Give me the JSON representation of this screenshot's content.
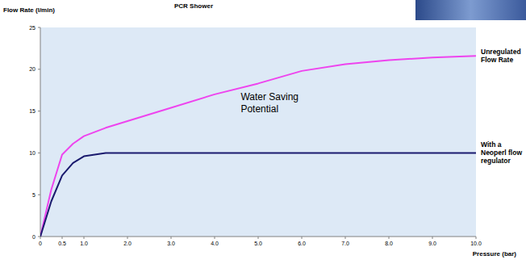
{
  "chart_data": {
    "type": "line",
    "title": "PCR Shower",
    "y_label": "Flow Rate (l/min)",
    "x_label": "Pressure (bar)",
    "x": [
      0,
      0.25,
      0.5,
      0.75,
      1.0,
      1.5,
      2,
      3,
      4,
      5,
      6,
      7,
      8,
      9,
      10
    ],
    "series": [
      {
        "name": "Unregulated Flow Rate",
        "color": "#ee44ee",
        "values": [
          0,
          5.6,
          9.8,
          11.1,
          12.0,
          13.0,
          13.8,
          15.4,
          17.0,
          18.3,
          19.8,
          20.6,
          21.1,
          21.4,
          21.6
        ]
      },
      {
        "name": "With a Neoperl flow regulator",
        "color": "#1a1a6e",
        "values": [
          0,
          4.2,
          7.3,
          8.8,
          9.6,
          10,
          10,
          10,
          10,
          10,
          10,
          10,
          10,
          10,
          10
        ]
      }
    ],
    "annotations": [
      {
        "text": "Water Saving Potential",
        "x": 4.6,
        "y": 16.3
      }
    ],
    "xlim": [
      0,
      10
    ],
    "xticks": [
      0,
      0.5,
      {
        "value": 1,
        "label": "1.0"
      },
      {
        "value": 2,
        "label": "2.0"
      },
      {
        "value": 3,
        "label": "3.0"
      },
      {
        "value": 4,
        "label": "4.0"
      },
      {
        "value": 5,
        "label": "5.0"
      },
      {
        "value": 6,
        "label": "6.0"
      },
      {
        "value": 7,
        "label": "7.0"
      },
      {
        "value": 8,
        "label": "8.0"
      },
      {
        "value": 9,
        "label": "9.0"
      },
      {
        "value": 10,
        "label": "10.0"
      }
    ],
    "ylim": [
      0,
      25
    ],
    "yticks": [
      0,
      5,
      10,
      15,
      20,
      25
    ],
    "grid": false
  }
}
